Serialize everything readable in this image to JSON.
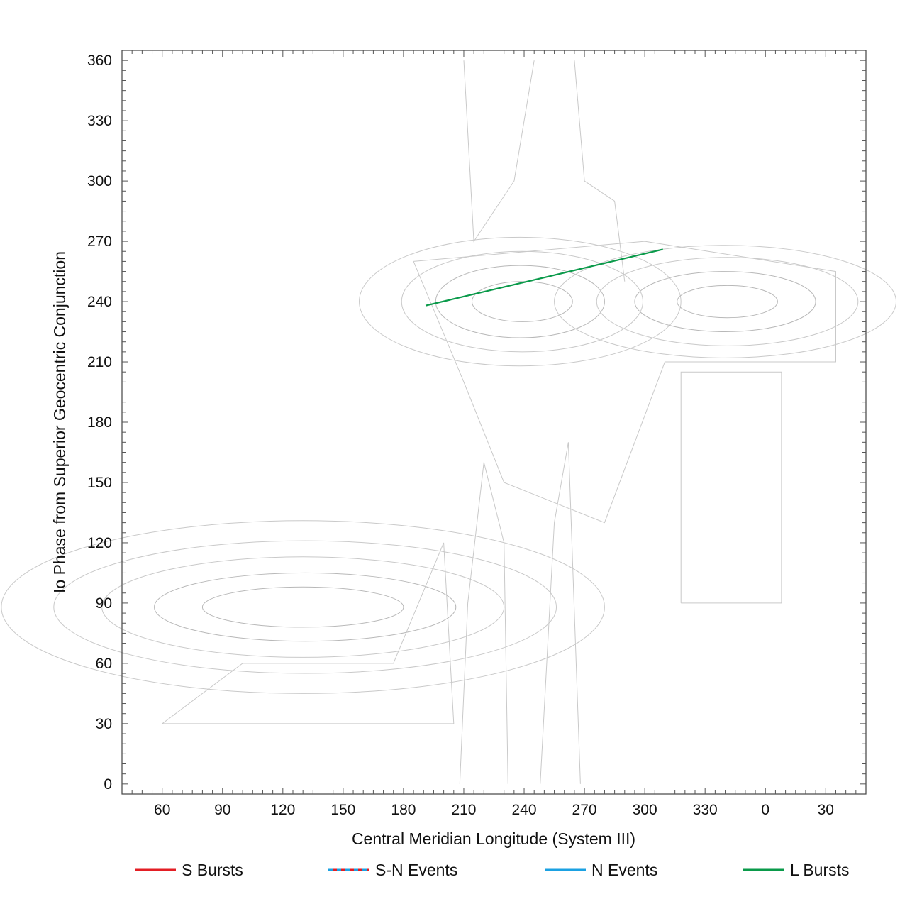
{
  "chart_data": {
    "type": "line",
    "title": "",
    "xlabel": "Central Meridian Longitude (System III)",
    "ylabel": "Io Phase from Superior Geocentric Conjunction",
    "x_unwrapped_range": [
      40,
      410
    ],
    "y_range": [
      -5,
      365
    ],
    "x_ticks": [
      "60",
      "90",
      "120",
      "150",
      "180",
      "210",
      "240",
      "270",
      "300",
      "330",
      "0",
      "30"
    ],
    "y_ticks": [
      "0",
      "30",
      "60",
      "90",
      "120",
      "150",
      "180",
      "210",
      "240",
      "270",
      "300",
      "330",
      "360"
    ],
    "grid": false,
    "legend_placement": "bottom",
    "legend": [
      {
        "name": "S Bursts",
        "color": "#e31e24",
        "style": "solid"
      },
      {
        "name": "S-N Events",
        "color": "#e31e24",
        "secondary_color": "#1ba1e2",
        "style": "dashed"
      },
      {
        "name": "N Events",
        "color": "#1ba1e2",
        "style": "solid"
      },
      {
        "name": "L Bursts",
        "color": "#0a9a4a",
        "style": "solid"
      }
    ],
    "series": [
      {
        "name": "L Bursts",
        "color": "#0a9a4a",
        "points": [
          [
            191,
            238
          ],
          [
            309,
            266
          ]
        ]
      }
    ],
    "contour_regions": [
      {
        "center": [
          130,
          88
        ],
        "levels": [
          [
            150,
            43
          ],
          [
            125,
            33
          ],
          [
            100,
            25
          ],
          [
            75,
            17
          ],
          [
            50,
            10
          ]
        ]
      },
      {
        "center": [
          238,
          240
        ],
        "levels": [
          [
            80,
            32
          ],
          [
            60,
            25
          ],
          [
            42,
            18
          ],
          [
            25,
            10
          ]
        ]
      },
      {
        "center": [
          340,
          240
        ],
        "levels": [
          [
            85,
            28
          ],
          [
            65,
            22
          ],
          [
            45,
            15
          ],
          [
            25,
            8
          ]
        ]
      }
    ]
  }
}
